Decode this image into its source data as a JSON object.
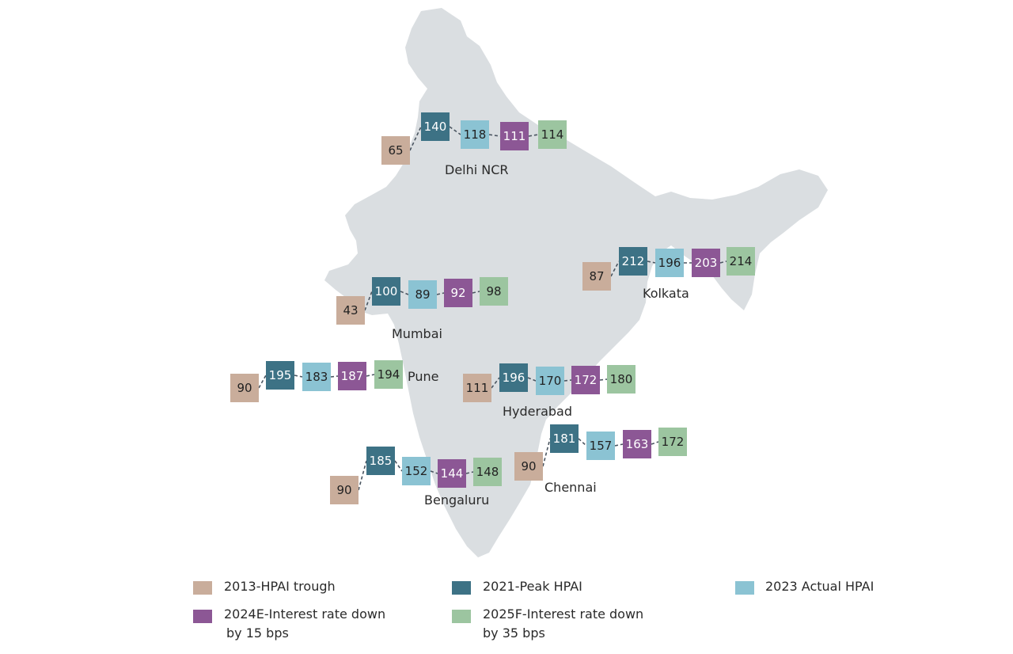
{
  "colors": {
    "map": "#dadee1",
    "connector": "#4a5560",
    "s2013": "#c9ad9b",
    "s2021": "#3d7285",
    "s2023": "#8bc3d3",
    "s2024": "#8c5795",
    "s2025": "#9cc5a0"
  },
  "chart_data": {
    "type": "annotated-map",
    "series": [
      {
        "name": "2013-HPAI trough",
        "key": "s2013"
      },
      {
        "name": "2021-Peak HPAI",
        "key": "s2021"
      },
      {
        "name": "2023 Actual HPAI",
        "key": "s2023"
      },
      {
        "name": "2024E-Interest rate down by 15 bps",
        "key": "s2024"
      },
      {
        "name": "2025F-Interest rate down by 35 bps",
        "key": "s2025"
      }
    ],
    "cities": [
      {
        "name": "Delhi NCR",
        "values": [
          65,
          140,
          118,
          111,
          114
        ]
      },
      {
        "name": "Kolkata",
        "values": [
          87,
          212,
          196,
          203,
          214
        ]
      },
      {
        "name": "Mumbai",
        "values": [
          43,
          100,
          89,
          92,
          98
        ]
      },
      {
        "name": "Pune",
        "values": [
          90,
          195,
          183,
          187,
          194
        ]
      },
      {
        "name": "Hyderabad",
        "values": [
          111,
          196,
          170,
          172,
          180
        ]
      },
      {
        "name": "Chennai",
        "values": [
          90,
          181,
          157,
          163,
          172
        ]
      },
      {
        "name": "Bengaluru",
        "values": [
          90,
          185,
          152,
          144,
          148
        ]
      }
    ]
  },
  "legend": [
    {
      "key": "s2013",
      "line1": "2013-HPAI trough",
      "line2": ""
    },
    {
      "key": "s2021",
      "line1": "2021-Peak HPAI",
      "line2": ""
    },
    {
      "key": "s2023",
      "line1": "2023 Actual HPAI",
      "line2": ""
    },
    {
      "key": "s2024",
      "line1": "2024E-Interest rate down",
      "line2": "by 15 bps"
    },
    {
      "key": "s2025",
      "line1": "2025F-Interest rate down",
      "line2": "by 35 bps"
    }
  ]
}
